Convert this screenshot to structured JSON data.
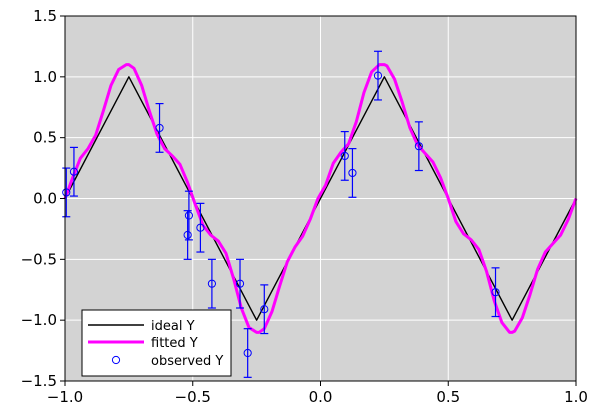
{
  "chart_data": {
    "type": "line",
    "title": "",
    "xlabel": "",
    "ylabel": "",
    "xlim": [
      -1.0,
      1.0
    ],
    "ylim": [
      -1.5,
      1.5
    ],
    "grid": true,
    "background": "#d3d3d3",
    "legend_position": "lower-left",
    "x_ticks": [
      -1.0,
      -0.5,
      0.0,
      0.5,
      1.0
    ],
    "x_tick_labels": [
      "−1.0",
      "−0.5",
      "0.0",
      "0.5",
      "1.0"
    ],
    "y_ticks": [
      -1.5,
      -1.0,
      -0.5,
      0.0,
      0.5,
      1.0,
      1.5
    ],
    "y_tick_labels": [
      "−1.5",
      "−1.0",
      "−0.5",
      "0.0",
      "0.5",
      "1.0",
      "1.5"
    ],
    "series": [
      {
        "name": "ideal Y",
        "kind": "line",
        "color": "#000000",
        "x": [
          -1.0,
          -0.75,
          -0.25,
          0.25,
          0.75,
          1.0
        ],
        "y": [
          0.0,
          1.0,
          -1.0,
          1.0,
          -1.0,
          0.0
        ]
      },
      {
        "name": "fitted Y",
        "kind": "line",
        "color": "#ff00ff",
        "x": [
          -1.0,
          -0.97,
          -0.94,
          -0.91,
          -0.88,
          -0.85,
          -0.82,
          -0.79,
          -0.76,
          -0.75,
          -0.73,
          -0.7,
          -0.67,
          -0.64,
          -0.61,
          -0.58,
          -0.55,
          -0.52,
          -0.49,
          -0.46,
          -0.43,
          -0.4,
          -0.37,
          -0.34,
          -0.31,
          -0.28,
          -0.25,
          -0.24,
          -0.22,
          -0.19,
          -0.16,
          -0.13,
          -0.1,
          -0.07,
          -0.04,
          -0.01,
          0.02,
          0.05,
          0.08,
          0.11,
          0.14,
          0.17,
          0.2,
          0.23,
          0.25,
          0.26,
          0.29,
          0.32,
          0.35,
          0.38,
          0.41,
          0.44,
          0.47,
          0.5,
          0.53,
          0.56,
          0.59,
          0.62,
          0.65,
          0.68,
          0.71,
          0.74,
          0.75,
          0.76,
          0.79,
          0.82,
          0.85,
          0.88,
          0.91,
          0.94,
          0.97,
          1.0
        ],
        "y": [
          0.0,
          0.17,
          0.33,
          0.41,
          0.52,
          0.72,
          0.93,
          1.06,
          1.1,
          1.1,
          1.07,
          0.93,
          0.72,
          0.53,
          0.41,
          0.35,
          0.28,
          0.13,
          -0.05,
          -0.22,
          -0.3,
          -0.35,
          -0.45,
          -0.66,
          -0.9,
          -1.06,
          -1.1,
          -1.1,
          -1.07,
          -0.93,
          -0.72,
          -0.52,
          -0.4,
          -0.31,
          -0.17,
          0.0,
          0.11,
          0.29,
          0.38,
          0.45,
          0.63,
          0.87,
          1.04,
          1.1,
          1.1,
          1.09,
          0.98,
          0.79,
          0.58,
          0.44,
          0.37,
          0.3,
          0.17,
          0.0,
          -0.19,
          -0.29,
          -0.34,
          -0.42,
          -0.6,
          -0.84,
          -1.02,
          -1.1,
          -1.1,
          -1.09,
          -0.98,
          -0.79,
          -0.58,
          -0.44,
          -0.37,
          -0.3,
          -0.17,
          0.0
        ]
      },
      {
        "name": "observed Y",
        "kind": "errorbar",
        "color": "#0000ff",
        "x": [
          -0.995,
          -0.965,
          -0.63,
          -0.52,
          -0.515,
          -0.47,
          -0.425,
          -0.315,
          -0.285,
          -0.22,
          0.095,
          0.125,
          0.225,
          0.385,
          0.685
        ],
        "y": [
          0.05,
          0.22,
          0.58,
          -0.3,
          -0.14,
          -0.24,
          -0.7,
          -0.7,
          -1.27,
          -0.91,
          0.35,
          0.21,
          1.01,
          0.43,
          -0.77
        ],
        "yerr": [
          0.2,
          0.2,
          0.2,
          0.2,
          0.2,
          0.2,
          0.2,
          0.2,
          0.2,
          0.2,
          0.2,
          0.2,
          0.2,
          0.2,
          0.2
        ]
      }
    ]
  }
}
